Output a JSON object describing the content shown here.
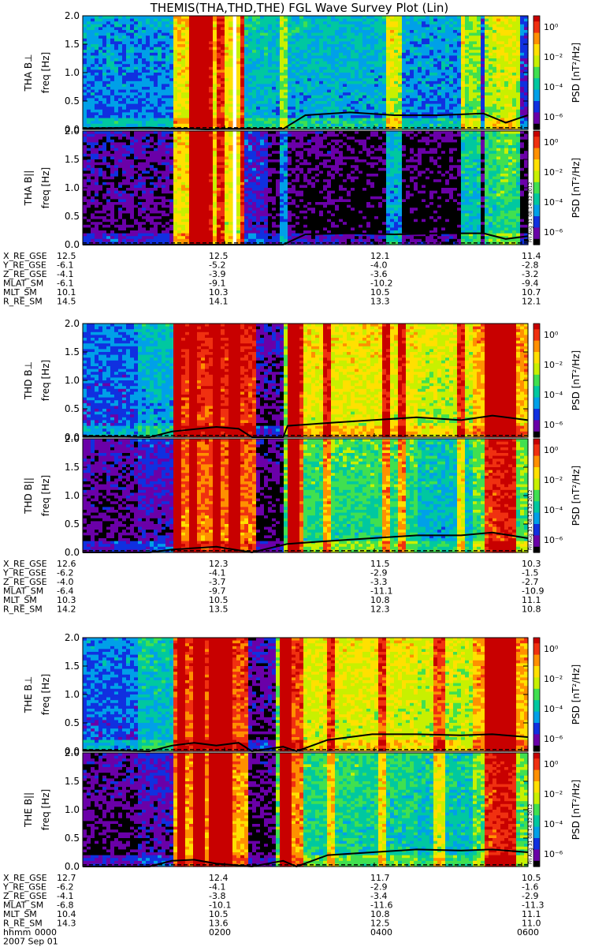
{
  "title": "THEMIS(THA,THD,THE) FGL Wave Survey Plot (Lin)",
  "colorbar": {
    "label": "PSD [nT²/Hz]",
    "ticks": [
      "10⁰",
      "10⁻²",
      "10⁻⁴",
      "10⁻⁶"
    ]
  },
  "stamp": "Fri Aug 31 08:14:32 2012",
  "panel_labels": [
    "THA B⊥",
    "THA B||",
    "THD B⊥",
    "THD B||",
    "THE B⊥",
    "THE B||"
  ],
  "freq_label": "freq [Hz]",
  "yticks": [
    "0.0",
    "0.5",
    "1.0",
    "1.5",
    "2.0"
  ],
  "ephem_names": [
    "X_RE_GSE",
    "Y_RE_GSE",
    "Z_RE_GSE",
    "MLAT_SM",
    "MLT_SM",
    "R_RE_SM"
  ],
  "ephem": [
    {
      "probe": "THA",
      "cols": [
        [
          "12.5",
          "-6.1",
          "-4.1",
          "-6.1",
          "10.1",
          "14.5"
        ],
        [
          "12.5",
          "-5.2",
          "-3.9",
          "-9.1",
          "10.3",
          "14.1"
        ],
        [
          "12.1",
          "-4.0",
          "-3.6",
          "-10.2",
          "10.5",
          "13.3"
        ],
        [
          "11.4",
          "-2.8",
          "-3.2",
          "-9.4",
          "10.7",
          "12.1"
        ]
      ]
    },
    {
      "probe": "THD",
      "cols": [
        [
          "12.6",
          "-6.2",
          "-4.0",
          "-6.4",
          "10.3",
          "14.2"
        ],
        [
          "12.3",
          "-4.1",
          "-3.7",
          "-9.7",
          "10.5",
          "13.5"
        ],
        [
          "11.5",
          "-2.9",
          "-3.3",
          "-11.1",
          "10.8",
          "12.3"
        ],
        [
          "10.3",
          "-1.5",
          "-2.7",
          "-10.9",
          "11.1",
          "10.8"
        ]
      ]
    },
    {
      "probe": "THE",
      "cols": [
        [
          "12.7",
          "-6.2",
          "-4.1",
          "-6.8",
          "10.4",
          "14.3"
        ],
        [
          "12.4",
          "-4.1",
          "-3.8",
          "-10.1",
          "10.5",
          "13.6"
        ],
        [
          "11.7",
          "-2.9",
          "-3.4",
          "-11.6",
          "10.8",
          "12.5"
        ],
        [
          "10.5",
          "-1.6",
          "-2.9",
          "-11.3",
          "11.1",
          "11.0"
        ]
      ]
    }
  ],
  "time_row_label": "hhmm",
  "time_ticks": [
    "0000",
    "0200",
    "0400",
    "0600"
  ],
  "date": "2007 Sep 01",
  "chart_data": {
    "type": "heatmap",
    "title": "THEMIS(THA,THD,THE) FGL Wave Survey Plot (Lin)",
    "x_ticks": [
      "0000",
      "0200",
      "0400",
      "0600"
    ],
    "ylabel": "freq [Hz]",
    "ylim": [
      0,
      2.0
    ],
    "colorbar": {
      "scale": "log",
      "label": "PSD [nT²/Hz]",
      "range": [
        1e-07,
        10
      ]
    },
    "palette": [
      "#000000",
      "#6a00a8",
      "#1030e0",
      "#00a0e8",
      "#00c8a0",
      "#40e050",
      "#c8f000",
      "#ffe000",
      "#ff9000",
      "#f03010",
      "#c80000"
    ],
    "probes": [
      {
        "name": "THA",
        "segments": [
          [
            0,
            0.2,
            0.12
          ],
          [
            0.2,
            0.3,
            0.72
          ],
          [
            0.3,
            0.36,
            0.7
          ],
          [
            0.36,
            0.42,
            0.2
          ],
          [
            0.42,
            0.58,
            0.08
          ],
          [
            0.58,
            0.7,
            0.05
          ],
          [
            0.7,
            0.86,
            0.05
          ],
          [
            0.86,
            1.0,
            0.07
          ]
        ],
        "perp_extra": [
          0.2,
          0,
          0,
          0.2,
          0.3,
          0.32,
          0.28,
          0.15
        ],
        "bars": [
          [
            0.25,
            0.01,
            0.9
          ],
          [
            0.27,
            0.012,
            0.9
          ],
          [
            0.28,
            0.01,
            0.7
          ],
          [
            0.31,
            0.01,
            0.6
          ],
          [
            0.36,
            0.006,
            0.6
          ],
          [
            0.45,
            0.006,
            0.5
          ],
          [
            0.7,
            0.02,
            0.7
          ],
          [
            0.87,
            0.02,
            0.8
          ],
          [
            0.92,
            0.015,
            0.9
          ],
          [
            0.95,
            0.025,
            1.0
          ],
          [
            0.97,
            0.012,
            0.9
          ]
        ],
        "gaps": [
          [
            0.335,
            0.345
          ]
        ],
        "line_perp": [
          [
            0,
            0.02
          ],
          [
            0.15,
            0.03
          ],
          [
            0.28,
            0.0
          ],
          [
            0.32,
            0.01
          ],
          [
            0.45,
            0.01
          ],
          [
            0.5,
            0.25
          ],
          [
            0.6,
            0.3
          ],
          [
            0.7,
            0.25
          ],
          [
            0.8,
            0.25
          ],
          [
            0.9,
            0.28
          ],
          [
            0.95,
            0.12
          ],
          [
            1.0,
            0.25
          ]
        ],
        "line_par": [
          [
            0,
            0.0
          ],
          [
            0.28,
            0.0
          ],
          [
            0.45,
            0.0
          ],
          [
            0.5,
            0.18
          ],
          [
            0.6,
            0.2
          ],
          [
            0.7,
            0.18
          ],
          [
            0.8,
            0.2
          ],
          [
            0.9,
            0.2
          ],
          [
            0.95,
            0.1
          ],
          [
            1.0,
            0.15
          ]
        ]
      },
      {
        "name": "THD",
        "segments": [
          [
            0,
            0.12,
            0.12
          ],
          [
            0.12,
            0.2,
            0.18
          ],
          [
            0.2,
            0.39,
            0.88
          ],
          [
            0.39,
            0.46,
            0.08
          ],
          [
            0.46,
            0.5,
            0.88
          ],
          [
            0.5,
            0.62,
            0.5
          ],
          [
            0.62,
            0.75,
            0.5
          ],
          [
            0.75,
            0.88,
            0.4
          ],
          [
            0.88,
            1.0,
            0.55
          ]
        ],
        "perp_extra": [
          0.15,
          0.2,
          0.08,
          0.05,
          0.08,
          0.2,
          0.2,
          0.25,
          0.25
        ],
        "bars": [
          [
            0.21,
            0.01,
            0.9
          ],
          [
            0.25,
            0.01,
            0.9
          ],
          [
            0.3,
            0.012,
            1.0
          ],
          [
            0.34,
            0.01,
            1.0
          ],
          [
            0.47,
            0.015,
            1.0
          ],
          [
            0.55,
            0.01,
            0.7
          ],
          [
            0.68,
            0.01,
            0.7
          ],
          [
            0.72,
            0.01,
            0.7
          ],
          [
            0.85,
            0.01,
            0.7
          ],
          [
            0.92,
            0.02,
            0.9
          ],
          [
            0.95,
            0.02,
            1.0
          ]
        ],
        "gaps": [],
        "line_perp": [
          [
            0,
            0.02
          ],
          [
            0.15,
            0.0
          ],
          [
            0.2,
            0.1
          ],
          [
            0.3,
            0.18
          ],
          [
            0.35,
            0.15
          ],
          [
            0.38,
            0.0
          ],
          [
            0.45,
            0.0
          ],
          [
            0.46,
            0.2
          ],
          [
            0.55,
            0.25
          ],
          [
            0.65,
            0.3
          ],
          [
            0.75,
            0.35
          ],
          [
            0.85,
            0.3
          ],
          [
            0.92,
            0.38
          ],
          [
            1.0,
            0.3
          ]
        ],
        "line_par": [
          [
            0,
            0.0
          ],
          [
            0.15,
            0.0
          ],
          [
            0.2,
            0.05
          ],
          [
            0.3,
            0.1
          ],
          [
            0.38,
            0.0
          ],
          [
            0.46,
            0.15
          ],
          [
            0.55,
            0.2
          ],
          [
            0.65,
            0.25
          ],
          [
            0.75,
            0.3
          ],
          [
            0.85,
            0.3
          ],
          [
            0.92,
            0.35
          ],
          [
            1.0,
            0.25
          ]
        ]
      },
      {
        "name": "THE",
        "segments": [
          [
            0,
            0.12,
            0.1
          ],
          [
            0.12,
            0.2,
            0.16
          ],
          [
            0.2,
            0.37,
            0.82
          ],
          [
            0.37,
            0.44,
            0.08
          ],
          [
            0.44,
            0.5,
            0.85
          ],
          [
            0.5,
            0.62,
            0.48
          ],
          [
            0.62,
            0.75,
            0.46
          ],
          [
            0.75,
            0.88,
            0.42
          ],
          [
            0.88,
            1.0,
            0.55
          ]
        ],
        "perp_extra": [
          0.18,
          0.25,
          0.1,
          0.05,
          0.08,
          0.2,
          0.22,
          0.22,
          0.25
        ],
        "bars": [
          [
            0.22,
            0.01,
            0.9
          ],
          [
            0.26,
            0.01,
            0.8
          ],
          [
            0.3,
            0.015,
            1.0
          ],
          [
            0.33,
            0.01,
            0.9
          ],
          [
            0.45,
            0.015,
            1.0
          ],
          [
            0.56,
            0.01,
            0.6
          ],
          [
            0.67,
            0.01,
            0.6
          ],
          [
            0.8,
            0.01,
            0.6
          ],
          [
            0.92,
            0.02,
            0.9
          ],
          [
            0.95,
            0.02,
            1.0
          ]
        ],
        "gaps": [],
        "line_perp": [
          [
            0,
            0.02
          ],
          [
            0.15,
            0.0
          ],
          [
            0.2,
            0.1
          ],
          [
            0.25,
            0.15
          ],
          [
            0.3,
            0.1
          ],
          [
            0.35,
            0.15
          ],
          [
            0.38,
            0.0
          ],
          [
            0.45,
            0.08
          ],
          [
            0.48,
            0.0
          ],
          [
            0.55,
            0.2
          ],
          [
            0.65,
            0.3
          ],
          [
            0.75,
            0.3
          ],
          [
            0.85,
            0.28
          ],
          [
            0.92,
            0.3
          ],
          [
            1.0,
            0.25
          ]
        ],
        "line_par": [
          [
            0,
            0.0
          ],
          [
            0.15,
            0.0
          ],
          [
            0.2,
            0.1
          ],
          [
            0.25,
            0.12
          ],
          [
            0.3,
            0.05
          ],
          [
            0.38,
            0.0
          ],
          [
            0.45,
            0.1
          ],
          [
            0.48,
            0.0
          ],
          [
            0.55,
            0.2
          ],
          [
            0.65,
            0.25
          ],
          [
            0.75,
            0.3
          ],
          [
            0.85,
            0.28
          ],
          [
            0.92,
            0.3
          ],
          [
            1.0,
            0.25
          ]
        ]
      }
    ]
  }
}
